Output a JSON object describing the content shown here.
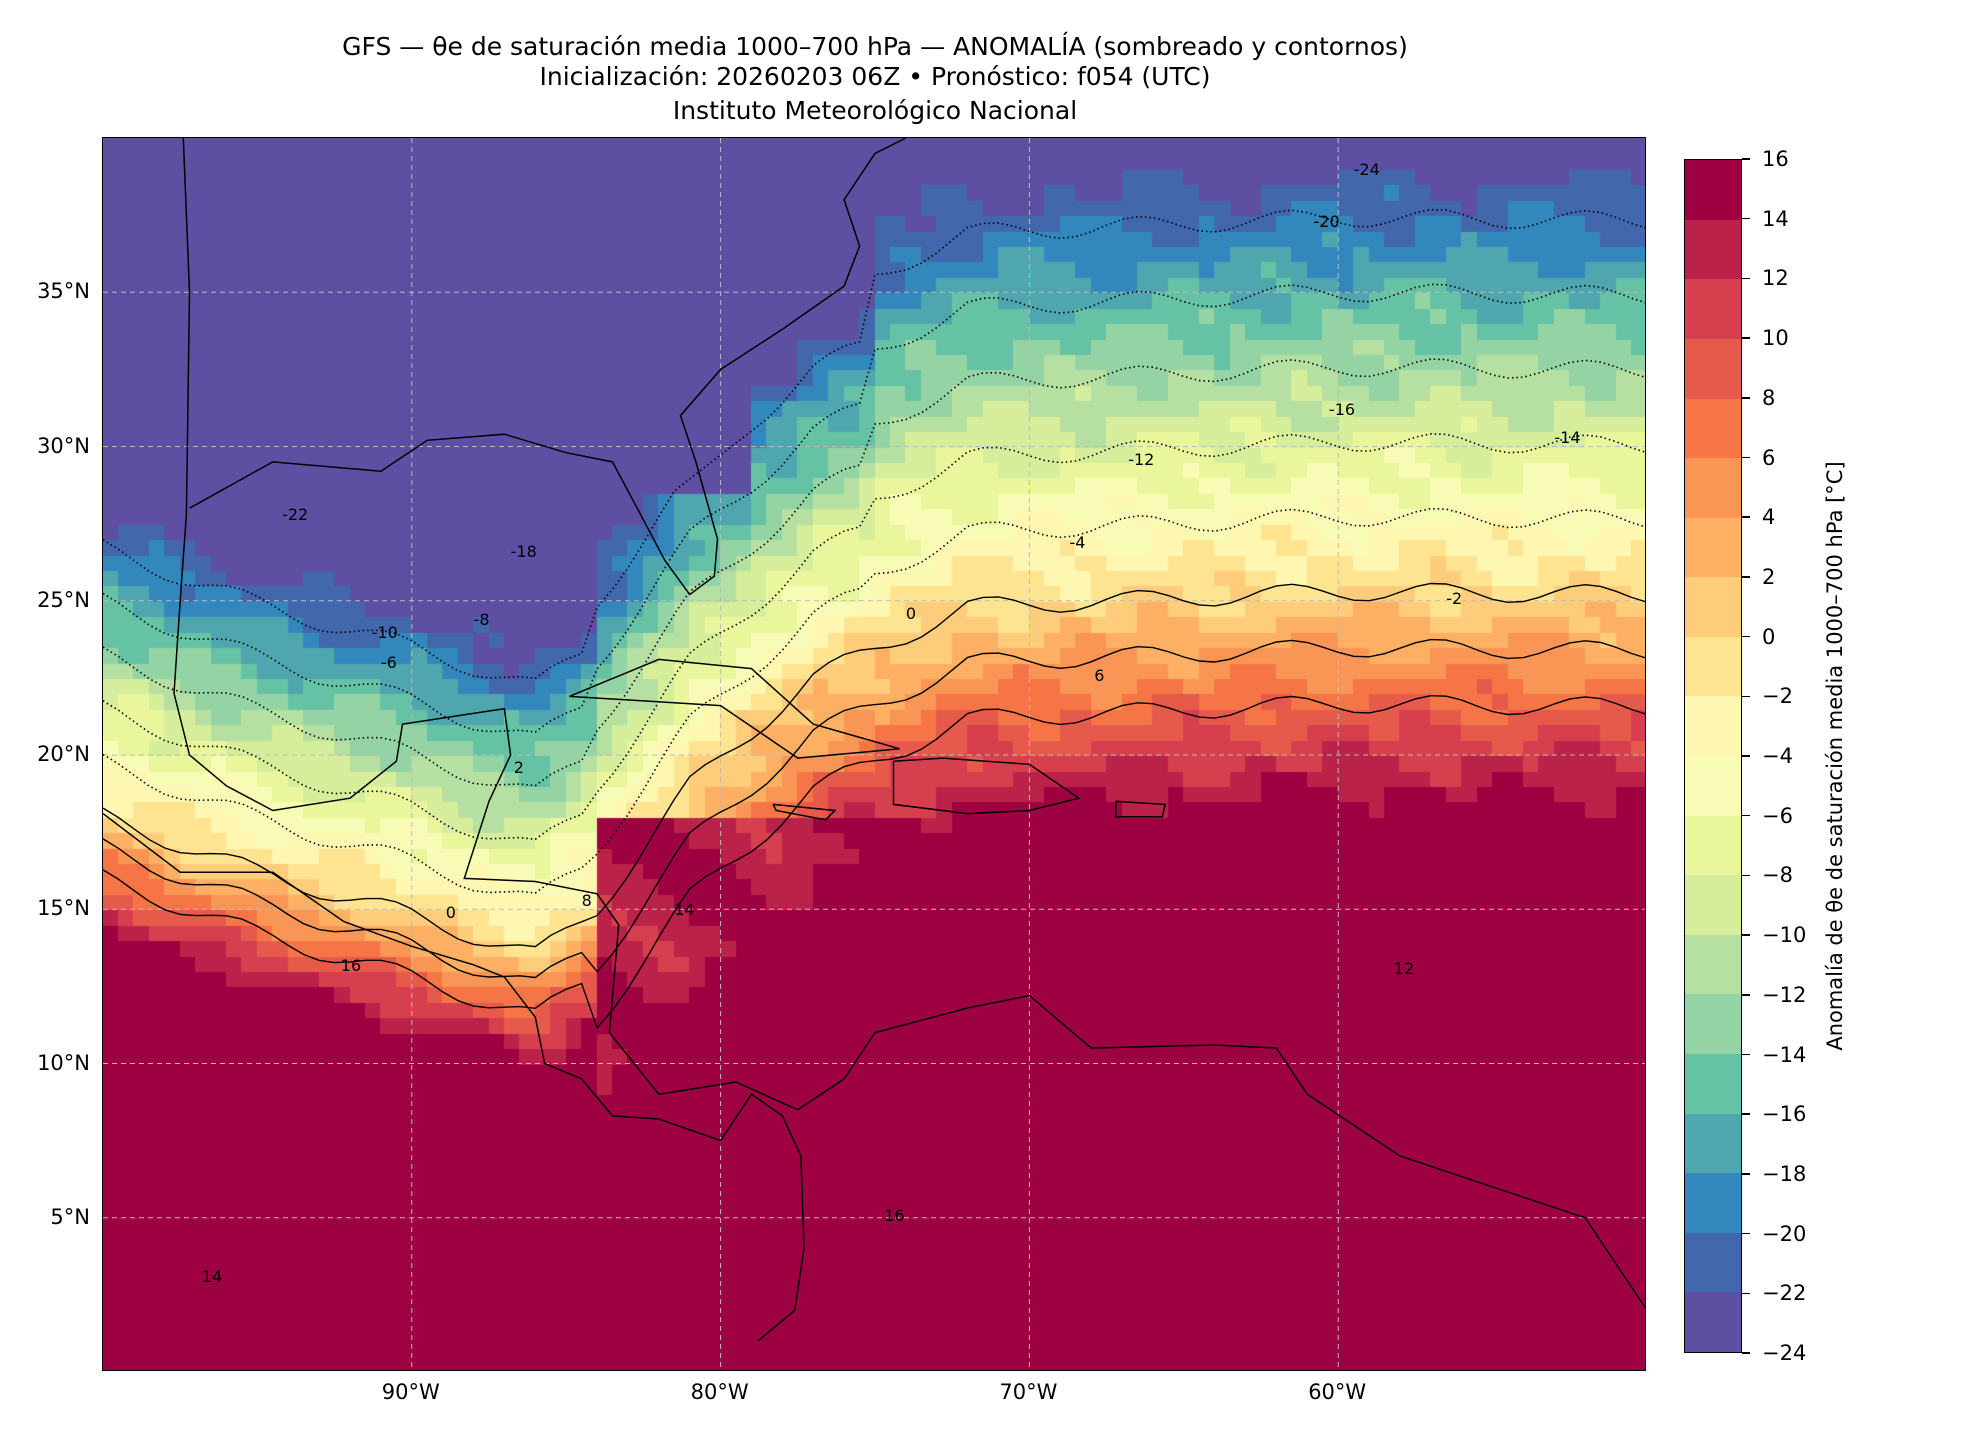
{
  "chart_data": {
    "type": "heatmap",
    "title": "GFS — θe de saturación media 1000–700 hPa — ANOMALÍA (sombreado y contornos)",
    "subtitle": "Inicialización: 20260203 06Z   •   Pronóstico: f054 (UTC)",
    "institution": "Instituto Meteorológico Nacional",
    "xlim": [
      -100,
      -50
    ],
    "ylim": [
      0,
      40
    ],
    "grid": true,
    "x_ticks": [
      {
        "value": -90,
        "label": "90°W"
      },
      {
        "value": -80,
        "label": "80°W"
      },
      {
        "value": -70,
        "label": "70°W"
      },
      {
        "value": -60,
        "label": "60°W"
      }
    ],
    "y_ticks": [
      {
        "value": 5,
        "label": "5°N"
      },
      {
        "value": 10,
        "label": "10°N"
      },
      {
        "value": 15,
        "label": "15°N"
      },
      {
        "value": 20,
        "label": "20°N"
      },
      {
        "value": 25,
        "label": "25°N"
      },
      {
        "value": 30,
        "label": "30°N"
      },
      {
        "value": 35,
        "label": "35°N"
      }
    ],
    "colorbar": {
      "label": "Anomalía de θe de saturación media 1000–700 hPa [°C]",
      "levels": [
        -24,
        -22,
        -20,
        -18,
        -16,
        -14,
        -12,
        -10,
        -8,
        -6,
        -4,
        -2,
        0,
        2,
        4,
        6,
        8,
        10,
        12,
        14,
        16
      ],
      "tick_labels": [
        "−24",
        "−22",
        "−20",
        "−18",
        "−16",
        "−14",
        "−12",
        "−10",
        "−8",
        "−6",
        "−4",
        "−2",
        "0",
        "2",
        "4",
        "6",
        "8",
        "10",
        "12",
        "14",
        "16"
      ],
      "colors": [
        "#5e4fa2",
        "#4367ad",
        "#3288bd",
        "#4fa6ae",
        "#66c2a5",
        "#94d4a4",
        "#b5e0a2",
        "#d6ee9b",
        "#eaf69c",
        "#f8fbb5",
        "#fef7b2",
        "#fee491",
        "#fdcd7c",
        "#fdb063",
        "#f99655",
        "#f57547",
        "#e65a4b",
        "#d6404e",
        "#bb2249",
        "#9e0142"
      ]
    },
    "contour_labels": [
      {
        "text": "-24",
        "lon": -59.5,
        "lat": 39.0
      },
      {
        "text": "-20",
        "lon": -60.8,
        "lat": 37.3
      },
      {
        "text": "-16",
        "lon": -60.3,
        "lat": 31.2
      },
      {
        "text": "-14",
        "lon": -53.0,
        "lat": 30.3
      },
      {
        "text": "-12",
        "lon": -66.8,
        "lat": 29.6
      },
      {
        "text": "-4",
        "lon": -68.7,
        "lat": 26.9
      },
      {
        "text": "-2",
        "lon": -56.5,
        "lat": 25.1
      },
      {
        "text": "0",
        "lon": -74.0,
        "lat": 24.6
      },
      {
        "text": "6",
        "lon": -67.9,
        "lat": 22.6
      },
      {
        "text": "12",
        "lon": -58.2,
        "lat": 13.1
      },
      {
        "text": "14",
        "lon": -81.5,
        "lat": 15.0
      },
      {
        "text": "16",
        "lon": -92.3,
        "lat": 13.2
      },
      {
        "text": "-22",
        "lon": -94.2,
        "lat": 27.8
      },
      {
        "text": "-18",
        "lon": -86.8,
        "lat": 26.6
      },
      {
        "text": "-10",
        "lon": -91.3,
        "lat": 24.0
      },
      {
        "text": "-8",
        "lon": -88.0,
        "lat": 24.4
      },
      {
        "text": "-6",
        "lon": -91.0,
        "lat": 23.0
      },
      {
        "text": "2",
        "lon": -86.7,
        "lat": 19.6
      },
      {
        "text": "8",
        "lon": -84.5,
        "lat": 15.3
      },
      {
        "text": "0",
        "lon": -88.9,
        "lat": 14.9
      },
      {
        "text": "14",
        "lon": -96.8,
        "lat": 3.1
      },
      {
        "text": "16",
        "lon": -74.7,
        "lat": 5.1
      }
    ]
  }
}
